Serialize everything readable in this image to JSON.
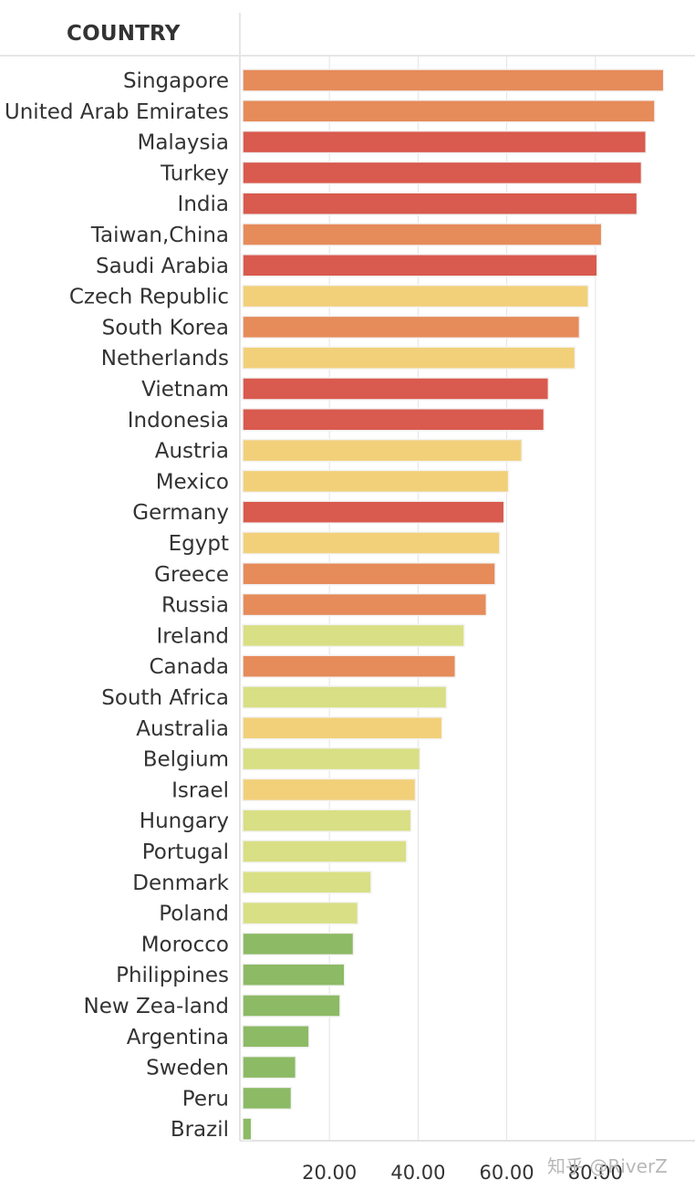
{
  "header": {
    "column_title": "COUNTRY"
  },
  "watermark": "知乎 @RiverZ",
  "colors": {
    "red": "#d95a4e",
    "orange": "#e68b5a",
    "yellow": "#f2d07a",
    "light_green": "#d8df84",
    "green": "#8cba65",
    "axis": "#e3e3e3",
    "text": "#333333"
  },
  "chart_data": {
    "type": "bar",
    "orientation": "horizontal",
    "title": "",
    "xlabel": "",
    "ylabel": "COUNTRY",
    "xlim": [
      0,
      103
    ],
    "xticks": [
      20,
      40,
      60,
      80
    ],
    "xtick_labels": [
      "20.00",
      "40.00",
      "60.00",
      "80.00"
    ],
    "grid": true,
    "categories": [
      "Singapore",
      "United Arab Emirates",
      "Malaysia",
      "Turkey",
      "India",
      "Taiwan,China",
      "Saudi Arabia",
      "Czech Republic",
      "South Korea",
      "Netherlands",
      "Vietnam",
      "Indonesia",
      "Austria",
      "Mexico",
      "Germany",
      "Egypt",
      "Greece",
      "Russia",
      "Ireland",
      "Canada",
      "South Africa",
      "Australia",
      "Belgium",
      "Israel",
      "Hungary",
      "Portugal",
      "Denmark",
      "Poland",
      "Morocco",
      "Philippines",
      "New Zea-land",
      "Argentina",
      "Sweden",
      "Peru",
      "Brazil"
    ],
    "values": [
      95,
      93,
      91,
      90,
      89,
      81,
      80,
      78,
      76,
      75,
      69,
      68,
      63,
      60,
      59,
      58,
      57,
      55,
      50,
      48,
      46,
      45,
      40,
      39,
      38,
      37,
      29,
      26,
      25,
      23,
      22,
      15,
      12,
      11,
      2
    ],
    "color_groups": [
      "orange",
      "orange",
      "red",
      "red",
      "red",
      "orange",
      "red",
      "yellow",
      "orange",
      "yellow",
      "red",
      "red",
      "yellow",
      "yellow",
      "red",
      "yellow",
      "orange",
      "orange",
      "light_green",
      "orange",
      "light_green",
      "yellow",
      "light_green",
      "yellow",
      "light_green",
      "light_green",
      "light_green",
      "light_green",
      "green",
      "green",
      "green",
      "green",
      "green",
      "green",
      "green"
    ]
  }
}
